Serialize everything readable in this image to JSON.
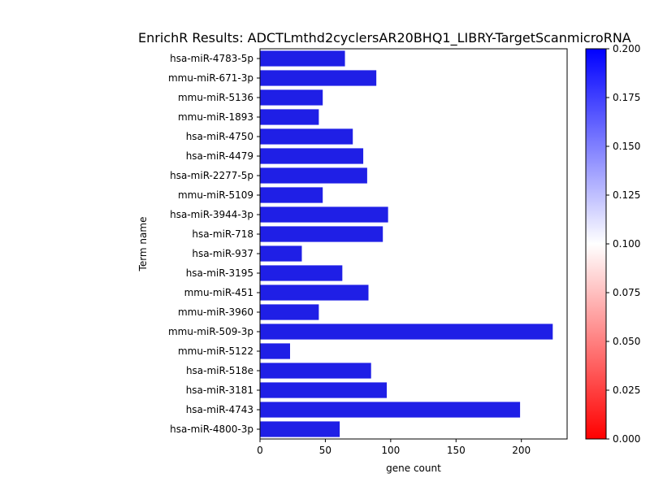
{
  "chart_data": {
    "type": "bar",
    "orientation": "horizontal",
    "title": "EnrichR Results: ADCTLmthd2cyclersAR20BHQ1_LIBRY-TargetScanmicroRNA",
    "xlabel": "gene count",
    "ylabel": "Term name",
    "xlim": [
      0,
      235
    ],
    "x_ticks": [
      "0",
      "50",
      "100",
      "150",
      "200"
    ],
    "categories": [
      "hsa-miR-4783-5p",
      "mmu-miR-671-3p",
      "mmu-miR-5136",
      "mmu-miR-1893",
      "hsa-miR-4750",
      "hsa-miR-4479",
      "hsa-miR-2277-5p",
      "mmu-miR-5109",
      "hsa-miR-3944-3p",
      "hsa-miR-718",
      "hsa-miR-937",
      "hsa-miR-3195",
      "mmu-miR-451",
      "mmu-miR-3960",
      "mmu-miR-509-3p",
      "mmu-miR-5122",
      "hsa-miR-518e",
      "hsa-miR-3181",
      "hsa-miR-4743",
      "hsa-miR-4800-3p"
    ],
    "values": [
      65,
      89,
      48,
      45,
      71,
      79,
      82,
      48,
      98,
      94,
      32,
      63,
      83,
      45,
      224,
      23,
      85,
      97,
      199,
      61
    ],
    "bar_color": "#1f1fe6",
    "grid": false,
    "colorbar": {
      "range": [
        0.0,
        0.2
      ],
      "ticks": [
        "0.000",
        "0.025",
        "0.050",
        "0.075",
        "0.100",
        "0.125",
        "0.150",
        "0.175",
        "0.200"
      ],
      "colors": [
        "#ff0000",
        "#ffffff",
        "#0000ff"
      ]
    }
  }
}
